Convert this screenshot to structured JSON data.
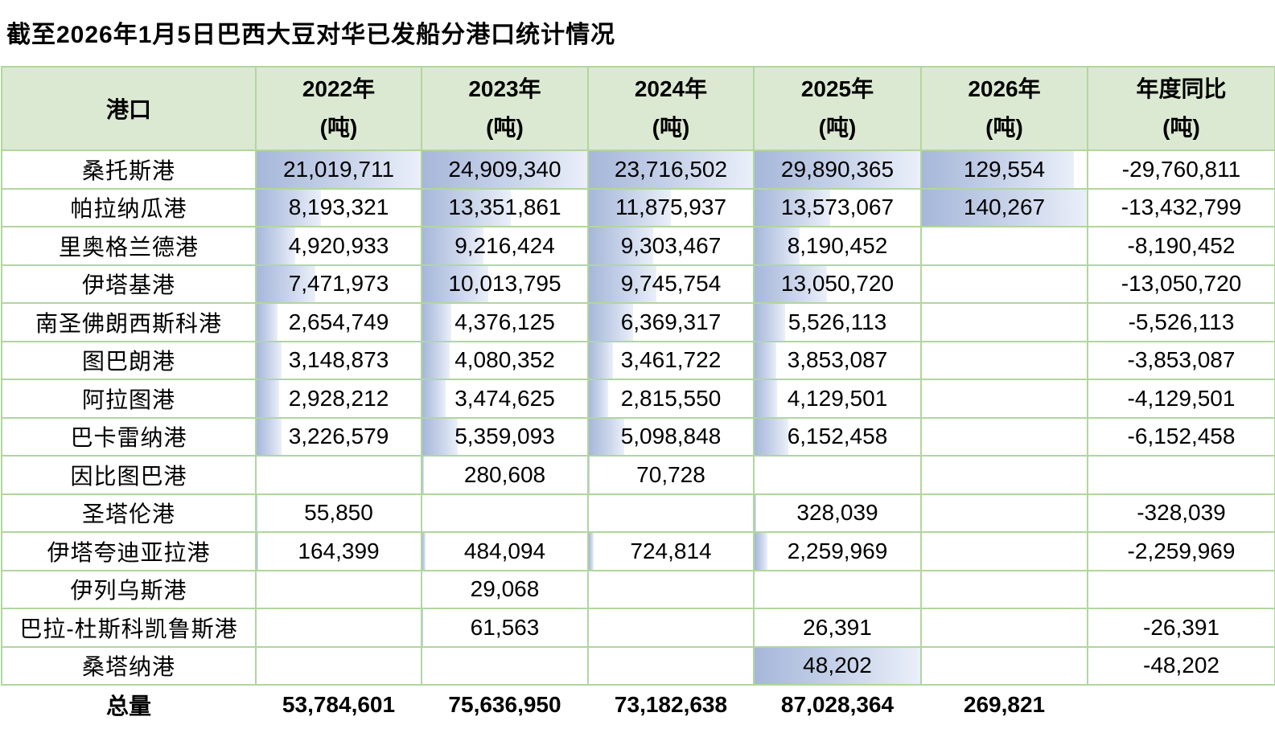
{
  "title": "截至2026年1月5日巴西大豆对华已发船分港口统计情况",
  "colors": {
    "header_bg": "#dce9d2",
    "grid_border": "#b1d69f",
    "bar_gradient_start": "#a6b7d9",
    "bar_gradient_end": "#eaeff9",
    "text": "#000000",
    "background": "#ffffff"
  },
  "table": {
    "port_header": "港口",
    "year_headers": [
      {
        "line1": "2022年",
        "line2": "(吨)"
      },
      {
        "line1": "2023年",
        "line2": "(吨)"
      },
      {
        "line1": "2024年",
        "line2": "(吨)"
      },
      {
        "line1": "2025年",
        "line2": "(吨)"
      },
      {
        "line1": "2026年",
        "line2": "(吨)"
      },
      {
        "line1": "年度同比",
        "line2": "(吨)"
      }
    ]
  },
  "chart_data": {
    "type": "table",
    "title": "截至2026年1月5日巴西大豆对华已发船分港口统计情况",
    "columns": [
      "港口",
      "2022年(吨)",
      "2023年(吨)",
      "2024年(吨)",
      "2025年(吨)",
      "2026年(吨)",
      "年度同比(吨)"
    ],
    "rows": [
      [
        "桑托斯港",
        21019711,
        24909340,
        23716502,
        29890365,
        129554,
        -29760811
      ],
      [
        "帕拉纳瓜港",
        8193321,
        13351861,
        11875937,
        13573067,
        140267,
        -13432799
      ],
      [
        "里奥格兰德港",
        4920933,
        9216424,
        9303467,
        8190452,
        null,
        -8190452
      ],
      [
        "伊塔基港",
        7471973,
        10013795,
        9745754,
        13050720,
        null,
        -13050720
      ],
      [
        "南圣佛朗西斯科港",
        2654749,
        4376125,
        6369317,
        5526113,
        null,
        -5526113
      ],
      [
        "图巴朗港",
        3148873,
        4080352,
        3461722,
        3853087,
        null,
        -3853087
      ],
      [
        "阿拉图港",
        2928212,
        3474625,
        2815550,
        4129501,
        null,
        -4129501
      ],
      [
        "巴卡雷纳港",
        3226579,
        5359093,
        5098848,
        6152458,
        null,
        -6152458
      ],
      [
        "因比图巴港",
        null,
        280608,
        70728,
        null,
        null,
        null
      ],
      [
        "圣塔伦港",
        55850,
        null,
        null,
        328039,
        null,
        -328039
      ],
      [
        "伊塔夸迪亚拉港",
        164399,
        484094,
        724814,
        2259969,
        null,
        -2259969
      ],
      [
        "伊列乌斯港",
        null,
        29068,
        null,
        null,
        null,
        null
      ],
      [
        "巴拉-杜斯科凯鲁斯港",
        null,
        61563,
        null,
        26391,
        null,
        -26391
      ],
      [
        "桑塔纳港",
        null,
        null,
        null,
        48202,
        null,
        -48202
      ]
    ],
    "total_row": [
      "总量",
      53784601,
      75636950,
      73182638,
      87028364,
      269821,
      null
    ],
    "bar_columns": [
      1,
      2,
      3,
      4,
      5
    ],
    "bar_overrides": [
      {
        "row": 13,
        "col": 4,
        "frac": 1
      }
    ]
  }
}
